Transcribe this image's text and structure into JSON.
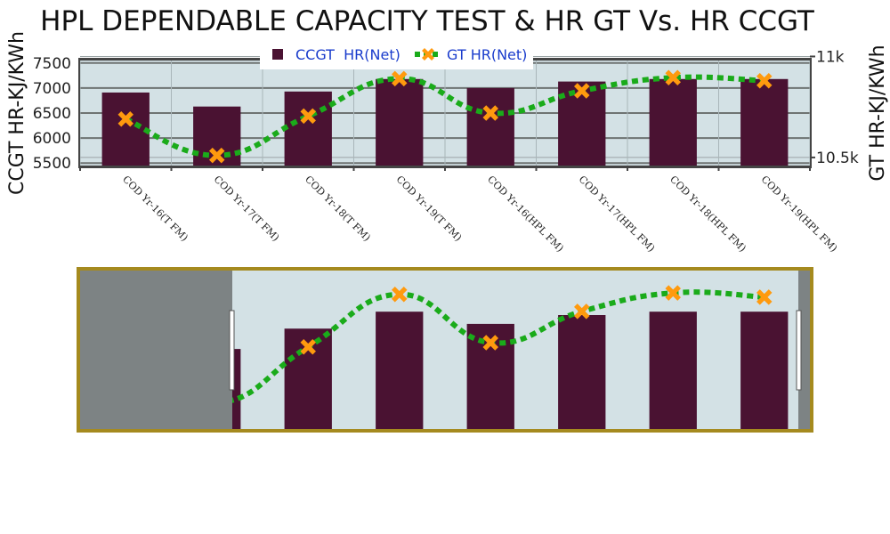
{
  "chart_data": {
    "type": "bar",
    "title": "HPL DEPENDABLE CAPACITY TEST & HR GT Vs. HR CCGT",
    "xlabel": "",
    "ylabel": "CCGT HR-KJ/KWh",
    "y2label": "GT HR-KJ/KWh",
    "categories": [
      "COD Yr-16(T FM)",
      "COD Yr-17(T FM)",
      "COD Yr-18(T FM)",
      "COD Yr-19(T FM)",
      "COD Yr-16(HPL FM)",
      "COD Yr-17(HPL FM)",
      "COD Yr-18(HPL FM)",
      "COD Yr-19(HPL FM)"
    ],
    "series": [
      {
        "name": "CCGT  HR(Net)",
        "type": "bar",
        "axis": "y",
        "color": "#4a1232",
        "values": [
          6910,
          6630,
          6930,
          7180,
          7000,
          7130,
          7180,
          7180
        ]
      },
      {
        "name": "GT HR(Net)",
        "type": "line",
        "axis": "y2",
        "color": "#1aab1a",
        "marker_color": "#ff9a0e",
        "values": [
          10690,
          10510,
          10705,
          10890,
          10720,
          10830,
          10895,
          10880
        ]
      }
    ],
    "ylim": [
      5450,
      7550
    ],
    "y_ticks": [
      5500,
      6000,
      6500,
      7000,
      7500
    ],
    "y_tick_labels": [
      "5500",
      "6000",
      "6500",
      "7000",
      "7500"
    ],
    "y2lim": [
      10460,
      10980
    ],
    "y2_ticks": [
      10500,
      11000
    ],
    "y2_tick_labels": [
      "10.5k",
      "11k"
    ],
    "legend_position": "top-center",
    "grid": true,
    "range_slider": true,
    "colors": {
      "plot_bg": "#d3e1e5",
      "grid": "#6e7372",
      "slider_border": "#a58a1f",
      "slider_mask": "#7d8384",
      "axis_line": "#444444"
    }
  }
}
